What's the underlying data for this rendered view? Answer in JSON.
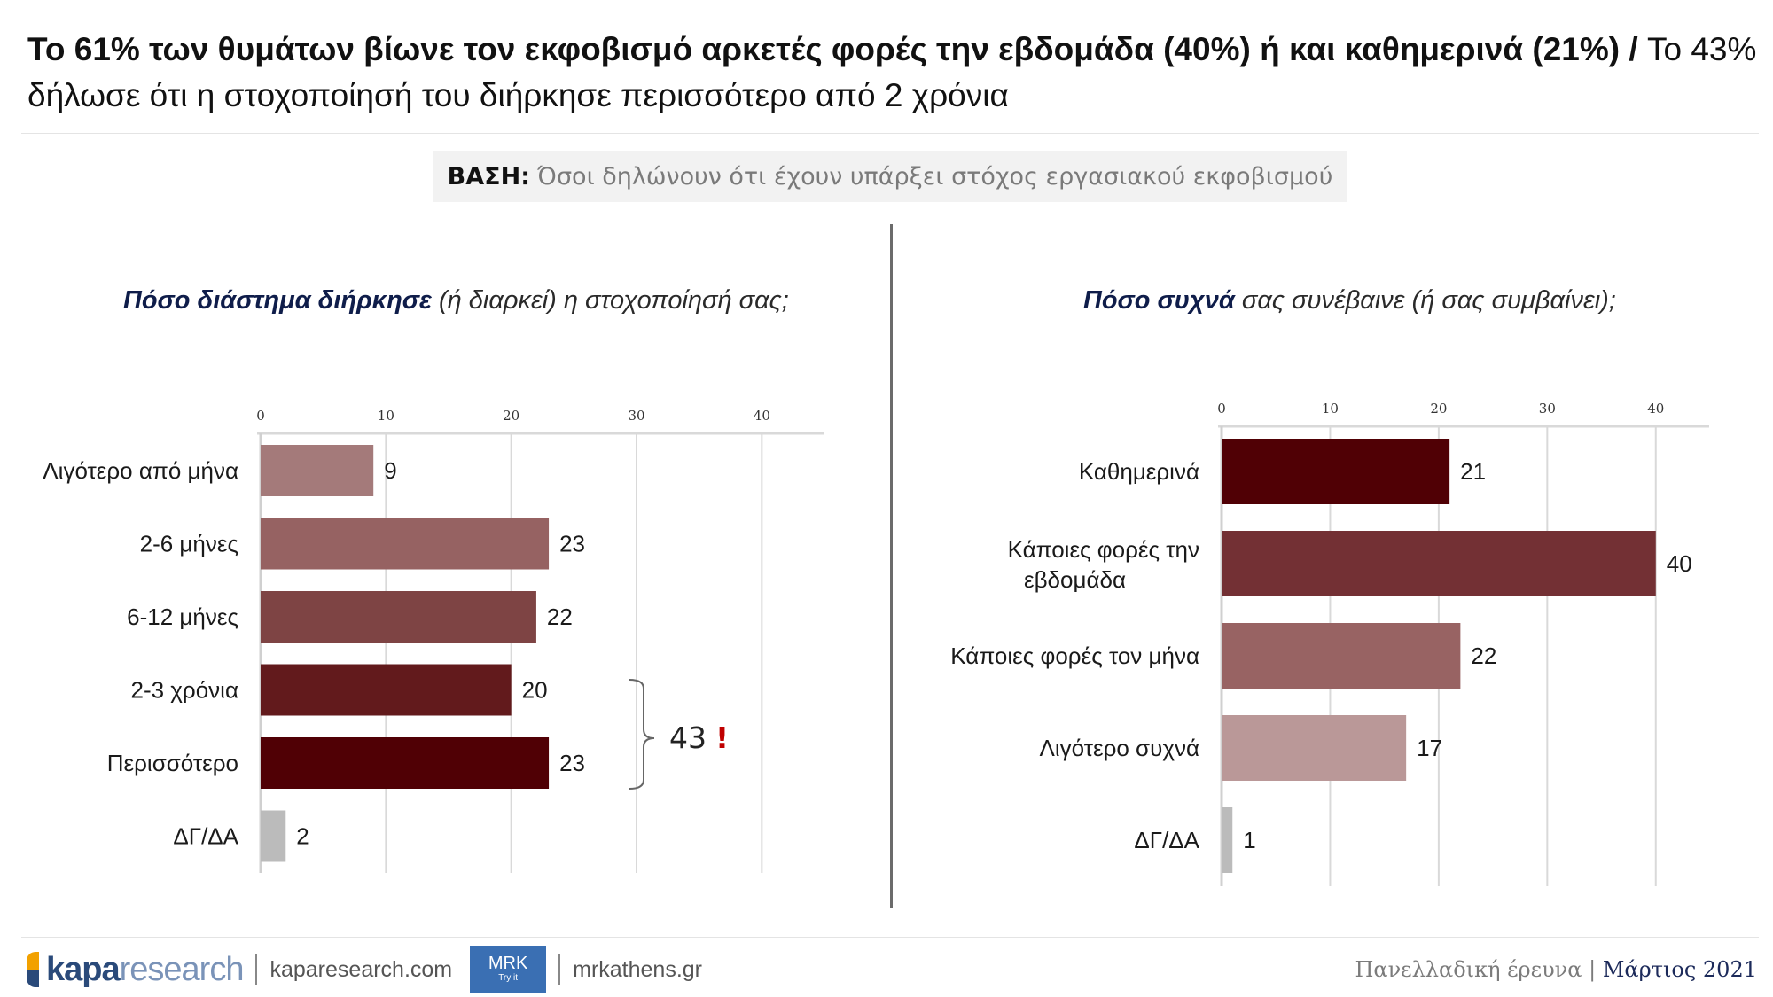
{
  "headline": {
    "bold_part": "Το 61% των θυμάτων βίωνε τον εκφοβισμό αρκετές φορές την εβδομάδα (40%) ή και καθημερινά (21%)",
    "slash": " / ",
    "normal_part": "Το 43% δήλωσε ότι η στοχοποίησή του διήρκησε περισσότερο από 2 χρόνια"
  },
  "base": {
    "label": "ΒΑΣΗ:",
    "text": "Όσοι δηλώνουν ότι έχουν υπάρξει στόχος εργασιακού εκφοβισμού"
  },
  "left_subtitle": {
    "strong": "Πόσο διάστημα διήρκησε",
    "rest": " (ή διαρκεί) η στοχοποίησή σας;"
  },
  "right_subtitle": {
    "strong": "Πόσο συχνά",
    "rest": " σας συνέβαινε (ή σας συμβαίνει);"
  },
  "bracket": {
    "total": "43",
    "mark": "!"
  },
  "chart_data": [
    {
      "type": "bar",
      "orientation": "horizontal",
      "title": "Πόσο διάστημα διήρκησε (ή διαρκεί) η στοχοποίησή σας;",
      "categories": [
        "Λιγότερο από μήνα",
        "2-6 μήνες",
        "6-12 μήνες",
        "2-3 χρόνια",
        "Περισσότερο",
        "ΔΓ/ΔΑ"
      ],
      "values": [
        9,
        23,
        22,
        20,
        23,
        2
      ],
      "colors": [
        "#a47a7a",
        "#966262",
        "#7e4444",
        "#621a1c",
        "#500005",
        "#bbbbbb"
      ],
      "xlim": [
        0,
        45
      ],
      "xticks": [
        0,
        10,
        20,
        30,
        40
      ],
      "grid": true
    },
    {
      "type": "bar",
      "orientation": "horizontal",
      "title": "Πόσο συχνά σας συνέβαινε (ή σας συμβαίνει);",
      "categories": [
        "Καθημερινά",
        "Κάποιες φορές την εβδομάδα",
        "Κάποιες φορές τον μήνα",
        "Λιγότερο συχνά",
        "ΔΓ/ΔΑ"
      ],
      "values": [
        21,
        40,
        22,
        17,
        1
      ],
      "colors": [
        "#500005",
        "#733034",
        "#986363",
        "#ba9898",
        "#bbbbbb"
      ],
      "xlim": [
        0,
        45
      ],
      "xticks": [
        0,
        10,
        20,
        30,
        40
      ],
      "grid": true
    }
  ],
  "footer": {
    "logo_bold": "kapa",
    "logo_light": "research",
    "url1": "kaparesearch.com",
    "mrk_main": "MRK",
    "mrk_sub": "Try it",
    "url2": "mrkathens.gr",
    "survey": "Πανελλαδική έρευνα",
    "sep": " | ",
    "date": "Μάρτιος 2021"
  }
}
